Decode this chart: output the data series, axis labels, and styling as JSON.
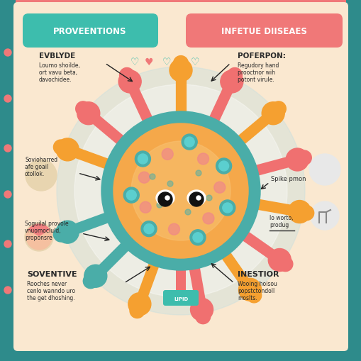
{
  "bg_salmon": "#F4A07A",
  "teal_dark": "#2E8B8B",
  "pink_light": "#F5A0A0",
  "teal_btn": "#3DBDAD",
  "pink_btn": "#F07878",
  "cream_bg": "#FAE8D0",
  "light_blue_circle": "#C5DFE0",
  "white": "#FFFFFF",
  "virus_teal": "#4AADA8",
  "virus_orange": "#F5A84A",
  "virus_pink_spike": "#F07070",
  "virus_orange_spike": "#F5A030",
  "virus_teal_spike": "#4AADA8",
  "text_dark": "#2a2a2a",
  "text_medium": "#3a3a3a",
  "title_left": "PROVEENTIONS",
  "title_right": "INFETUE DIISEAES",
  "label_tl": "EVBLYDE",
  "text_tl1": "Loumo shoilde,",
  "text_tl2": "ort vavu beta,",
  "text_tl3": "davochidee.",
  "label_tr": "POFERPON:",
  "text_tr1": "Regudory hand",
  "text_tr2": "prooctnor wih",
  "text_tr3": "potont virule.",
  "label_ml": "Sovioharred",
  "label_ml2": "afe goail",
  "label_ml3": "otollok.",
  "label_mr": "Spike pmon",
  "label_ml_b1": "Soguilal provole",
  "label_ml_b2": "vnuomocluld,",
  "label_ml_b3": "proponsre",
  "label_bl": "SOVENTIVE",
  "text_bl1": "Rooches never",
  "text_bl2": "cenlo wanndo uro",
  "text_bl3": "the get dhoshing.",
  "label_br": "INESTIOR",
  "text_br1": "Wooing hoisou",
  "text_br2": "popstctondoll",
  "text_br3": "moslts.",
  "text_mr2": "lo worto,",
  "text_mr3": "produg"
}
